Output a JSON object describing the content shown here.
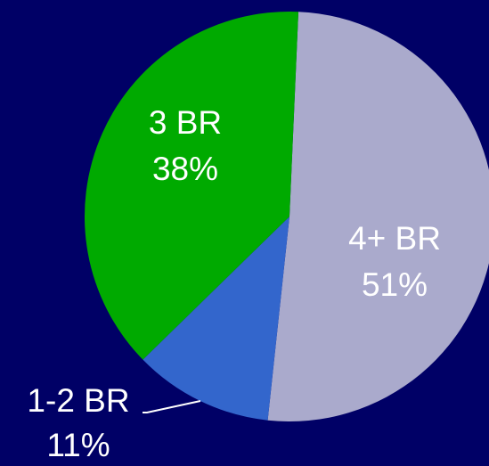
{
  "chart_data": {
    "type": "pie",
    "categories": [
      "4+ BR",
      "1-2 BR",
      "3 BR"
    ],
    "values": [
      51,
      11,
      38
    ],
    "value_labels": [
      "51%",
      "11%",
      "38%"
    ],
    "colors": [
      "#aaaacc",
      "#3366cc",
      "#00aa00"
    ]
  }
}
